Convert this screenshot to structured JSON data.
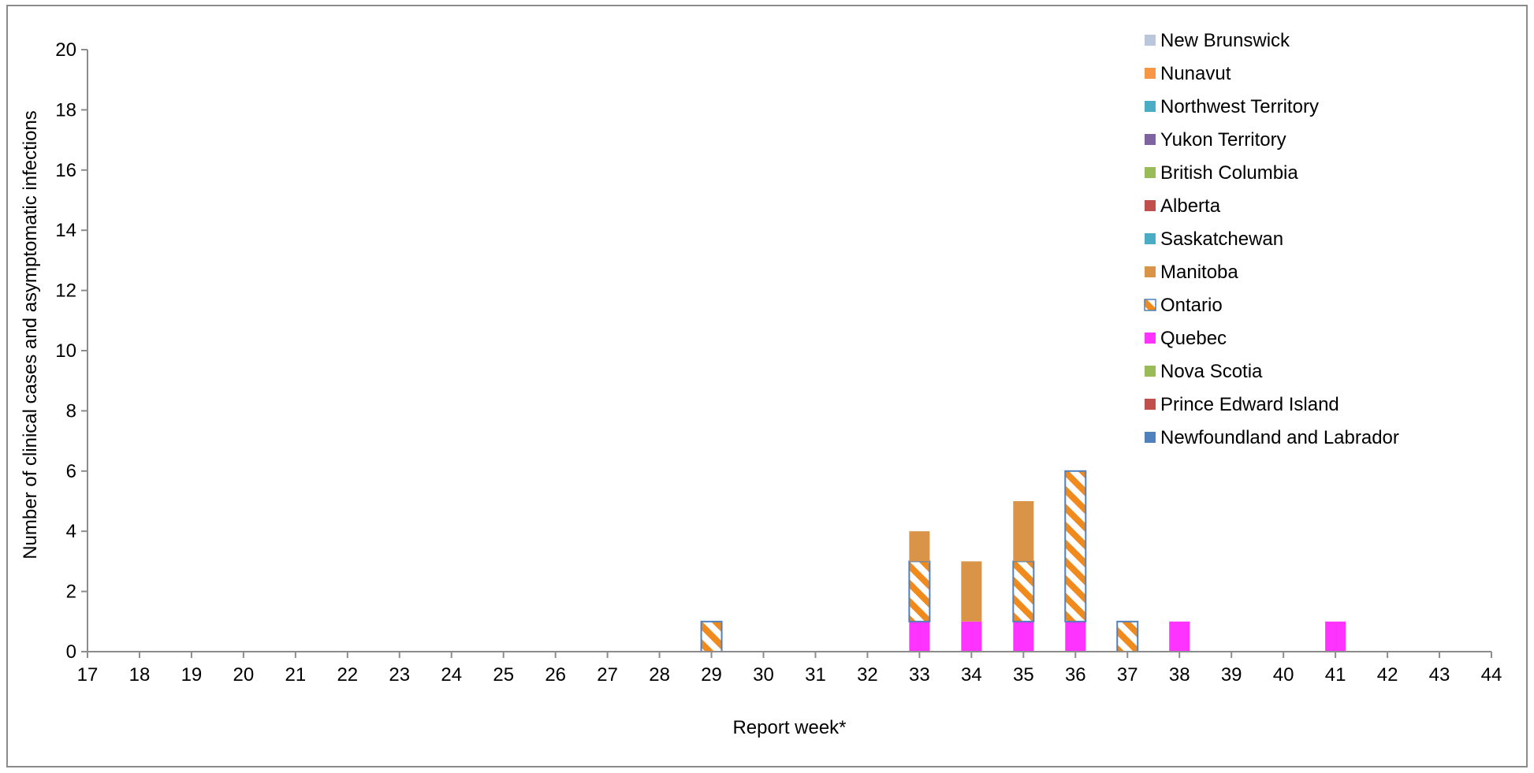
{
  "chart_data": {
    "type": "bar",
    "stacked": true,
    "title": "",
    "xlabel": "Report week*",
    "ylabel": "Number of clinical cases and asymptomatic infections",
    "ylim": [
      0,
      20
    ],
    "yticks": [
      0,
      2,
      4,
      6,
      8,
      10,
      12,
      14,
      16,
      18,
      20
    ],
    "categories": [
      "17",
      "18",
      "19",
      "20",
      "21",
      "22",
      "23",
      "24",
      "25",
      "26",
      "27",
      "28",
      "29",
      "30",
      "31",
      "32",
      "33",
      "34",
      "35",
      "36",
      "37",
      "38",
      "39",
      "40",
      "41",
      "42",
      "43",
      "44"
    ],
    "legend_position": "top-right",
    "series": [
      {
        "name": "Newfoundland and Labrador",
        "color": "#4f81bd",
        "values": [
          0,
          0,
          0,
          0,
          0,
          0,
          0,
          0,
          0,
          0,
          0,
          0,
          0,
          0,
          0,
          0,
          0,
          0,
          0,
          0,
          0,
          0,
          0,
          0,
          0,
          0,
          0,
          0
        ]
      },
      {
        "name": "Prince Edward Island",
        "color": "#c0504d",
        "values": [
          0,
          0,
          0,
          0,
          0,
          0,
          0,
          0,
          0,
          0,
          0,
          0,
          0,
          0,
          0,
          0,
          0,
          0,
          0,
          0,
          0,
          0,
          0,
          0,
          0,
          0,
          0,
          0
        ]
      },
      {
        "name": "Nova Scotia",
        "color": "#9bbb59",
        "values": [
          0,
          0,
          0,
          0,
          0,
          0,
          0,
          0,
          0,
          0,
          0,
          0,
          0,
          0,
          0,
          0,
          0,
          0,
          0,
          0,
          0,
          0,
          0,
          0,
          0,
          0,
          0,
          0
        ]
      },
      {
        "name": "Quebec",
        "color": "#ff33ff",
        "values": [
          0,
          0,
          0,
          0,
          0,
          0,
          0,
          0,
          0,
          0,
          0,
          0,
          0,
          0,
          0,
          0,
          1,
          1,
          1,
          1,
          0,
          1,
          0,
          0,
          1,
          0,
          0,
          0
        ]
      },
      {
        "name": "Ontario",
        "color": "#f79646",
        "pattern": "hatched",
        "values": [
          0,
          0,
          0,
          0,
          0,
          0,
          0,
          0,
          0,
          0,
          0,
          0,
          1,
          0,
          0,
          0,
          2,
          0,
          2,
          5,
          1,
          0,
          0,
          0,
          0,
          0,
          0,
          0
        ]
      },
      {
        "name": "Manitoba",
        "color": "#d99447",
        "values": [
          0,
          0,
          0,
          0,
          0,
          0,
          0,
          0,
          0,
          0,
          0,
          0,
          0,
          0,
          0,
          0,
          1,
          2,
          2,
          0,
          0,
          0,
          0,
          0,
          0,
          0,
          0,
          0
        ]
      },
      {
        "name": "Saskatchewan",
        "color": "#4bacc6",
        "values": [
          0,
          0,
          0,
          0,
          0,
          0,
          0,
          0,
          0,
          0,
          0,
          0,
          0,
          0,
          0,
          0,
          0,
          0,
          0,
          0,
          0,
          0,
          0,
          0,
          0,
          0,
          0,
          0
        ]
      },
      {
        "name": "Alberta",
        "color": "#c0504d",
        "values": [
          0,
          0,
          0,
          0,
          0,
          0,
          0,
          0,
          0,
          0,
          0,
          0,
          0,
          0,
          0,
          0,
          0,
          0,
          0,
          0,
          0,
          0,
          0,
          0,
          0,
          0,
          0,
          0
        ]
      },
      {
        "name": "British Columbia",
        "color": "#9bbb59",
        "values": [
          0,
          0,
          0,
          0,
          0,
          0,
          0,
          0,
          0,
          0,
          0,
          0,
          0,
          0,
          0,
          0,
          0,
          0,
          0,
          0,
          0,
          0,
          0,
          0,
          0,
          0,
          0,
          0
        ]
      },
      {
        "name": "Yukon Territory",
        "color": "#8064a2",
        "values": [
          0,
          0,
          0,
          0,
          0,
          0,
          0,
          0,
          0,
          0,
          0,
          0,
          0,
          0,
          0,
          0,
          0,
          0,
          0,
          0,
          0,
          0,
          0,
          0,
          0,
          0,
          0,
          0
        ]
      },
      {
        "name": "Northwest Territory",
        "color": "#4bacc6",
        "values": [
          0,
          0,
          0,
          0,
          0,
          0,
          0,
          0,
          0,
          0,
          0,
          0,
          0,
          0,
          0,
          0,
          0,
          0,
          0,
          0,
          0,
          0,
          0,
          0,
          0,
          0,
          0,
          0
        ]
      },
      {
        "name": "Nunavut",
        "color": "#f79646",
        "values": [
          0,
          0,
          0,
          0,
          0,
          0,
          0,
          0,
          0,
          0,
          0,
          0,
          0,
          0,
          0,
          0,
          0,
          0,
          0,
          0,
          0,
          0,
          0,
          0,
          0,
          0,
          0,
          0
        ]
      },
      {
        "name": "New Brunswick",
        "color": "#b9c6dc",
        "values": [
          0,
          0,
          0,
          0,
          0,
          0,
          0,
          0,
          0,
          0,
          0,
          0,
          0,
          0,
          0,
          0,
          0,
          0,
          0,
          0,
          0,
          0,
          0,
          0,
          0,
          0,
          0,
          0
        ]
      }
    ],
    "legend_order": [
      "New Brunswick",
      "Nunavut",
      "Northwest Territory",
      "Yukon Territory",
      "British Columbia",
      "Alberta",
      "Saskatchewan",
      "Manitoba",
      "Ontario",
      "Quebec",
      "Nova Scotia",
      "Prince Edward Island",
      "Newfoundland and Labrador"
    ]
  }
}
